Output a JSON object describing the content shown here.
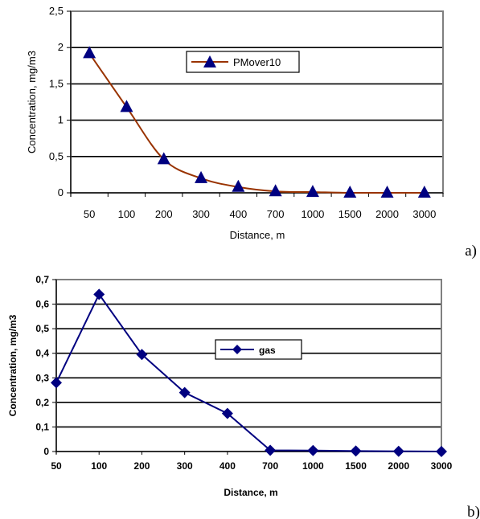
{
  "chart_data": [
    {
      "type": "line",
      "panel": "a)",
      "categories": [
        "50",
        "100",
        "200",
        "300",
        "400",
        "700",
        "1000",
        "1500",
        "2000",
        "3000"
      ],
      "series": [
        {
          "name": "PMover10",
          "values": [
            1.92,
            1.18,
            0.46,
            0.2,
            0.08,
            0.02,
            0.01,
            0.0,
            0.0,
            0.0
          ],
          "color": "#993300",
          "marker": "triangle",
          "marker_color": "#000080"
        }
      ],
      "xlabel": "Distance, m",
      "ylabel": "Concentration, mg/m3",
      "ylim": [
        0,
        2.5
      ],
      "yticks": [
        "0",
        "0,5",
        "1",
        "1,5",
        "2",
        "2,5"
      ],
      "grid": true,
      "legend": "top-center"
    },
    {
      "type": "line",
      "panel": "b)",
      "categories": [
        "50",
        "100",
        "200",
        "300",
        "400",
        "700",
        "1000",
        "1500",
        "2000",
        "3000"
      ],
      "series": [
        {
          "name": "gas",
          "values": [
            0.28,
            0.64,
            0.395,
            0.24,
            0.155,
            0.005,
            0.004,
            0.002,
            0.001,
            0.0
          ],
          "color": "#000080",
          "marker": "diamond",
          "marker_color": "#000080"
        }
      ],
      "xlabel": "Distance, m",
      "ylabel": "Concentration, mg/m3",
      "ylim": [
        0,
        0.7
      ],
      "yticks": [
        "0",
        "0,1",
        "0,2",
        "0,3",
        "0,4",
        "0,5",
        "0,6",
        "0,7"
      ],
      "grid": true,
      "legend": "top-center"
    }
  ]
}
